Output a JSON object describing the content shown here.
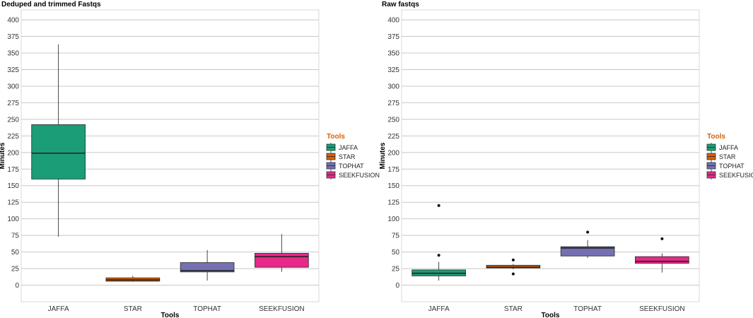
{
  "chart_data": [
    {
      "type": "box",
      "title": "Deduped and trimmed Fastqs",
      "xlabel": "Tools",
      "ylabel": "Minutes",
      "ylim": [
        -25,
        415
      ],
      "yticks": [
        0,
        25,
        50,
        75,
        100,
        125,
        150,
        175,
        200,
        225,
        250,
        275,
        300,
        325,
        350,
        375,
        400
      ],
      "categories": [
        "JAFFA",
        "STAR",
        "TOPHAT",
        "SEEKFUSION"
      ],
      "grid": true,
      "legend_position": "right",
      "legend_title": "Tools",
      "series": [
        {
          "category": "JAFFA",
          "min": 73,
          "q1": 160,
          "median": 199,
          "q3": 242,
          "max": 363,
          "outliers": [],
          "color": "#1b9e77"
        },
        {
          "category": "STAR",
          "min": 5,
          "q1": 6,
          "median": 8,
          "q3": 11,
          "max": 14,
          "outliers": [],
          "color": "#d95f02"
        },
        {
          "category": "TOPHAT",
          "min": 7,
          "q1": 20,
          "median": 22,
          "q3": 34,
          "max": 53,
          "outliers": [],
          "color": "#7570b3"
        },
        {
          "category": "SEEKFUSION",
          "min": 20,
          "q1": 27,
          "median": 43,
          "q3": 48,
          "max": 77,
          "outliers": [],
          "color": "#e7298a"
        }
      ]
    },
    {
      "type": "box",
      "title": "Raw fastqs",
      "xlabel": "Tools",
      "ylabel": "Minutes",
      "ylim": [
        -25,
        415
      ],
      "yticks": [
        0,
        25,
        50,
        75,
        100,
        125,
        150,
        175,
        200,
        225,
        250,
        275,
        300,
        325,
        350,
        375,
        400
      ],
      "categories": [
        "JAFFA",
        "STAR",
        "TOPHAT",
        "SEEKFUSION"
      ],
      "grid": true,
      "legend_position": "right",
      "legend_title": "Tools",
      "series": [
        {
          "category": "JAFFA",
          "min": 7,
          "q1": 14,
          "median": 18,
          "q3": 23,
          "max": 35,
          "outliers": [
            45,
            120
          ],
          "color": "#1b9e77"
        },
        {
          "category": "STAR",
          "min": 24,
          "q1": 26,
          "median": 27,
          "q3": 30,
          "max": 32,
          "outliers": [
            17,
            38
          ],
          "color": "#d95f02"
        },
        {
          "category": "TOPHAT",
          "min": 41,
          "q1": 44,
          "median": 56,
          "q3": 58,
          "max": 68,
          "outliers": [
            80
          ],
          "color": "#7570b3"
        },
        {
          "category": "SEEKFUSION",
          "min": 19,
          "q1": 33,
          "median": 36,
          "q3": 43,
          "max": 48,
          "outliers": [
            70
          ],
          "color": "#e7298a"
        }
      ]
    }
  ],
  "legend": {
    "title": "Tools",
    "title_color": "#d95f02",
    "items": [
      {
        "label": "JAFFA",
        "color": "#1b9e77"
      },
      {
        "label": "STAR",
        "color": "#d95f02"
      },
      {
        "label": "TOPHAT",
        "color": "#7570b3"
      },
      {
        "label": "SEEKFUSION",
        "color": "#e7298a"
      }
    ]
  },
  "colors": {
    "grid": "#c8c8c8",
    "panel_border": "#d9d9d9",
    "whisker": "#333333"
  }
}
